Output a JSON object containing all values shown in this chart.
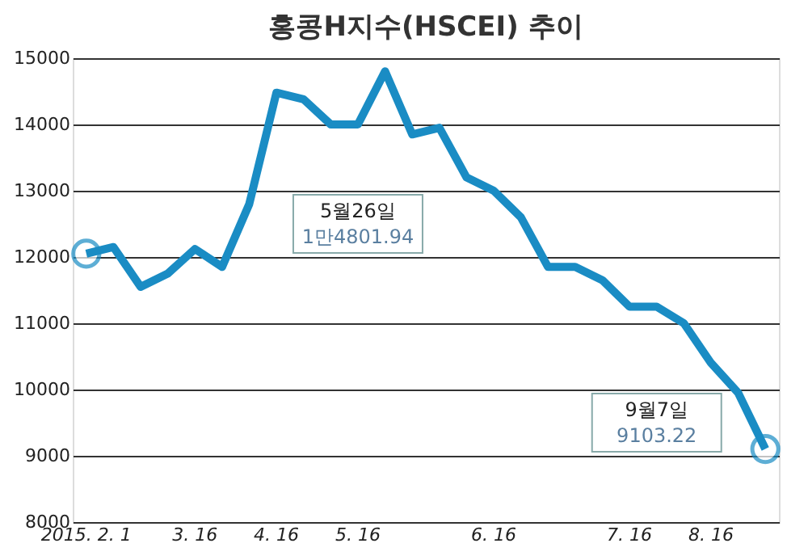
{
  "chart_data": {
    "type": "line",
    "title": "홍콩H지수(HSCEI) 추이",
    "categories": [
      "2015. 2. 1",
      null,
      null,
      null,
      "3. 16",
      null,
      null,
      "4. 16",
      null,
      null,
      "5. 16",
      null,
      null,
      null,
      null,
      "6. 16",
      null,
      null,
      null,
      null,
      "7. 16",
      null,
      null,
      "8. 16",
      null,
      null
    ],
    "series": [
      {
        "color": "#1a8cc4",
        "values": [
          12050,
          12150,
          11550,
          11750,
          12120,
          11850,
          12800,
          14480,
          14380,
          14000,
          14000,
          14801.94,
          13850,
          13950,
          13200,
          13000,
          12600,
          11850,
          11850,
          11650,
          11250,
          11250,
          11000,
          10400,
          9950,
          9103.22
        ]
      }
    ],
    "ylim": [
      8000,
      15000
    ],
    "yticks": [
      8000,
      9000,
      10000,
      11000,
      12000,
      13000,
      14000,
      15000
    ],
    "grid": "y",
    "line_style": "solid",
    "annotations": [
      "5월26일\n1만4801.94",
      "9월7일\n9103.22"
    ]
  }
}
